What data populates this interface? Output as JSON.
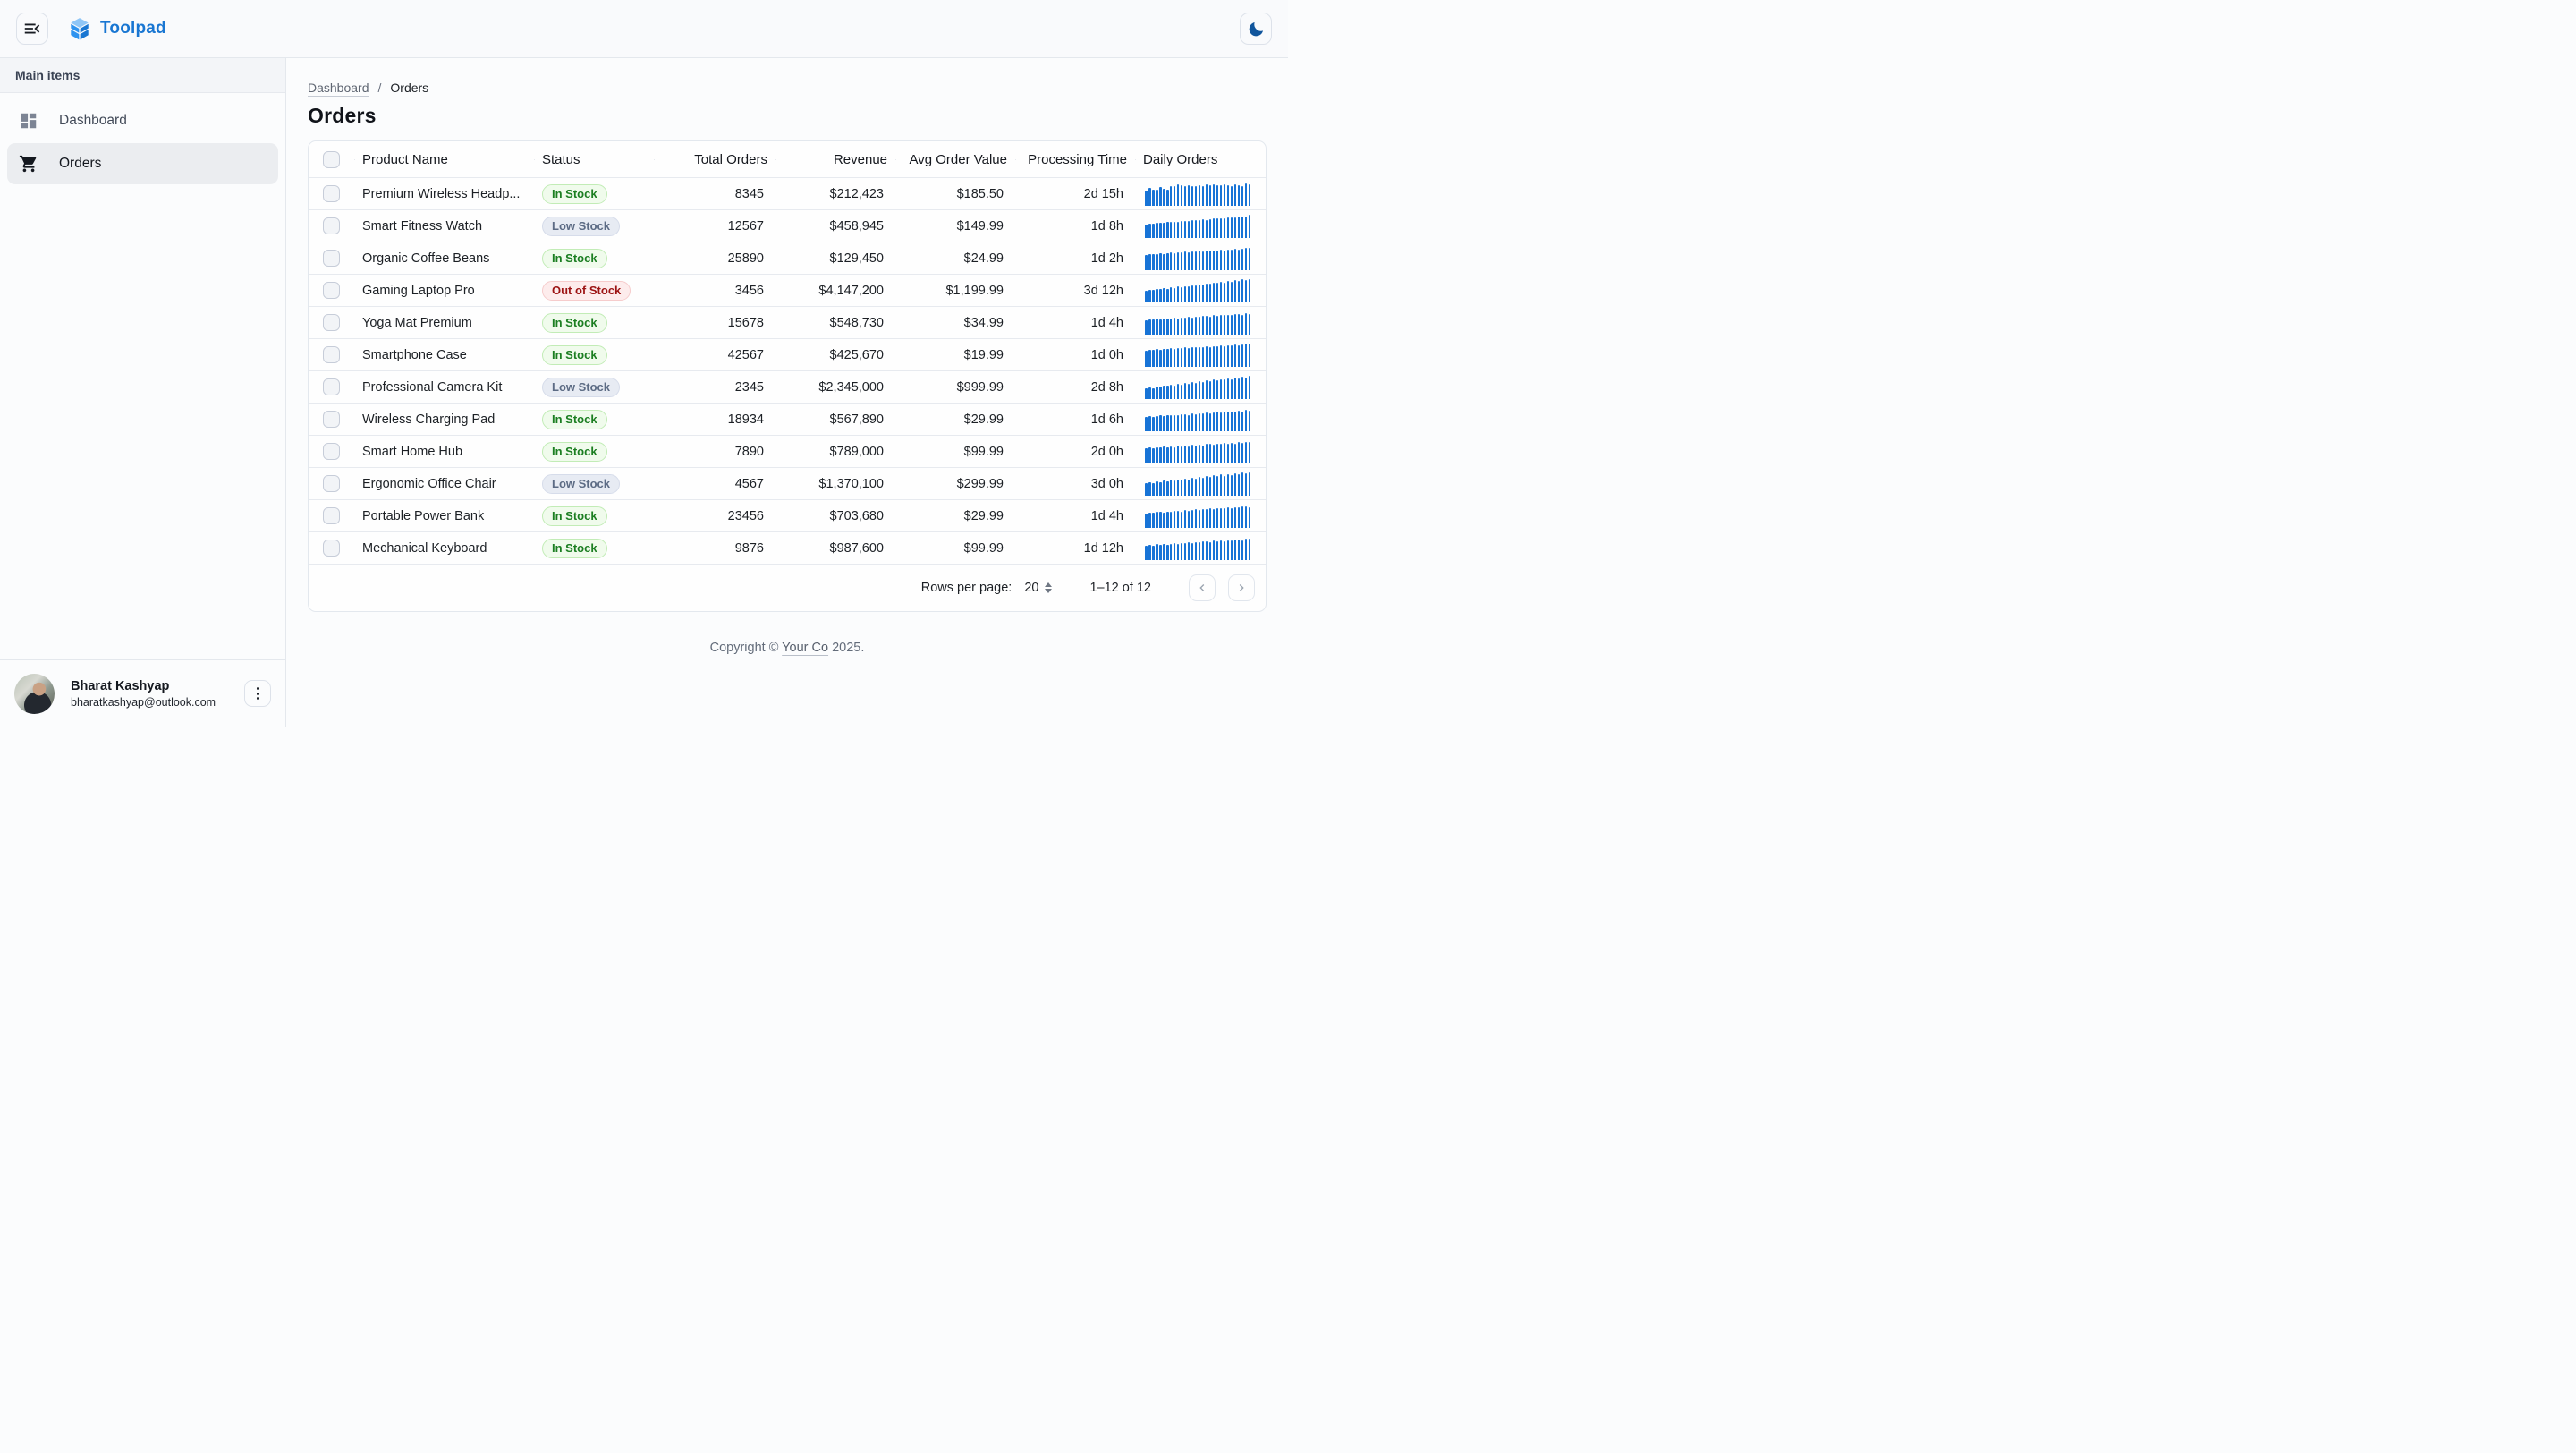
{
  "appbar": {
    "brand": "Toolpad"
  },
  "sidebar": {
    "section_label": "Main items",
    "items": [
      {
        "label": "Dashboard",
        "icon": "dashboard-icon",
        "active": false
      },
      {
        "label": "Orders",
        "icon": "shopping-cart-icon",
        "active": true
      }
    ],
    "user": {
      "name": "Bharat Kashyap",
      "email": "bharatkashyap@outlook.com"
    }
  },
  "breadcrumb": {
    "parent": "Dashboard",
    "separator": "/",
    "current": "Orders"
  },
  "page": {
    "title": "Orders"
  },
  "table": {
    "columns": {
      "product": "Product Name",
      "status": "Status",
      "total_orders": "Total Orders",
      "revenue": "Revenue",
      "avg_order_value": "Avg Order Value",
      "processing_time": "Processing Time",
      "daily_orders": "Daily Orders"
    },
    "rows": [
      {
        "product": "Premium Wireless Headp...",
        "status": "In Stock",
        "status_type": "in",
        "total_orders": "8345",
        "revenue": "$212,423",
        "avg_order_value": "$185.50",
        "processing_time": "2d 15h",
        "spark": [
          0.58,
          0.72,
          0.66,
          0.62,
          0.76,
          0.7,
          0.66,
          0.8,
          0.84,
          0.9,
          0.86,
          0.82,
          0.88,
          0.84,
          0.82,
          0.87,
          0.84,
          0.89,
          0.86,
          0.92,
          0.88,
          0.85,
          0.9,
          0.87,
          0.84,
          0.89,
          0.86,
          0.83,
          0.94,
          0.9
        ]
      },
      {
        "product": "Smart Fitness Watch",
        "status": "Low Stock",
        "status_type": "low",
        "total_orders": "12567",
        "revenue": "$458,945",
        "avg_order_value": "$149.99",
        "processing_time": "1d 8h",
        "spark": [
          0.52,
          0.56,
          0.54,
          0.58,
          0.6,
          0.58,
          0.62,
          0.64,
          0.63,
          0.66,
          0.68,
          0.67,
          0.7,
          0.72,
          0.71,
          0.74,
          0.76,
          0.75,
          0.78,
          0.8,
          0.82,
          0.81,
          0.84,
          0.86,
          0.85,
          0.88,
          0.9,
          0.89,
          0.93,
          1.0
        ]
      },
      {
        "product": "Organic Coffee Beans",
        "status": "In Stock",
        "status_type": "in",
        "total_orders": "25890",
        "revenue": "$129,450",
        "avg_order_value": "$24.99",
        "processing_time": "1d 2h",
        "spark": [
          0.6,
          0.64,
          0.62,
          0.66,
          0.68,
          0.66,
          0.7,
          0.72,
          0.7,
          0.74,
          0.72,
          0.76,
          0.74,
          0.78,
          0.76,
          0.8,
          0.78,
          0.82,
          0.8,
          0.84,
          0.82,
          0.86,
          0.84,
          0.88,
          0.86,
          0.9,
          0.88,
          0.92,
          0.94,
          0.96
        ]
      },
      {
        "product": "Gaming Laptop Pro",
        "status": "Out of Stock",
        "status_type": "out",
        "total_orders": "3456",
        "revenue": "$4,147,200",
        "avg_order_value": "$1,199.99",
        "processing_time": "3d 12h",
        "spark": [
          0.42,
          0.46,
          0.44,
          0.5,
          0.48,
          0.54,
          0.52,
          0.58,
          0.56,
          0.62,
          0.6,
          0.66,
          0.64,
          0.7,
          0.68,
          0.74,
          0.72,
          0.78,
          0.76,
          0.82,
          0.8,
          0.86,
          0.84,
          0.9,
          0.88,
          0.94,
          0.92,
          0.98,
          0.96,
          1.0
        ]
      },
      {
        "product": "Yoga Mat Premium",
        "status": "In Stock",
        "status_type": "in",
        "total_orders": "15678",
        "revenue": "$548,730",
        "avg_order_value": "$34.99",
        "processing_time": "1d 4h",
        "spark": [
          0.56,
          0.6,
          0.58,
          0.62,
          0.6,
          0.64,
          0.66,
          0.62,
          0.68,
          0.66,
          0.7,
          0.68,
          0.72,
          0.7,
          0.74,
          0.72,
          0.76,
          0.78,
          0.74,
          0.8,
          0.78,
          0.82,
          0.8,
          0.84,
          0.82,
          0.86,
          0.88,
          0.84,
          0.9,
          0.88
        ]
      },
      {
        "product": "Smartphone Case",
        "status": "In Stock",
        "status_type": "in",
        "total_orders": "42567",
        "revenue": "$425,670",
        "avg_order_value": "$19.99",
        "processing_time": "1d 0h",
        "spark": [
          0.66,
          0.7,
          0.68,
          0.72,
          0.7,
          0.74,
          0.72,
          0.76,
          0.74,
          0.78,
          0.76,
          0.8,
          0.78,
          0.82,
          0.8,
          0.84,
          0.82,
          0.86,
          0.84,
          0.88,
          0.86,
          0.9,
          0.88,
          0.92,
          0.9,
          0.94,
          0.92,
          0.96,
          0.98,
          1.0
        ]
      },
      {
        "product": "Professional Camera Kit",
        "status": "Low Stock",
        "status_type": "low",
        "total_orders": "2345",
        "revenue": "$2,345,000",
        "avg_order_value": "$999.99",
        "processing_time": "2d 8h",
        "spark": [
          0.36,
          0.42,
          0.38,
          0.46,
          0.44,
          0.52,
          0.48,
          0.56,
          0.52,
          0.6,
          0.56,
          0.64,
          0.6,
          0.68,
          0.64,
          0.72,
          0.68,
          0.76,
          0.72,
          0.8,
          0.76,
          0.84,
          0.8,
          0.88,
          0.84,
          0.92,
          0.88,
          0.96,
          0.92,
          1.0
        ]
      },
      {
        "product": "Wireless Charging Pad",
        "status": "In Stock",
        "status_type": "in",
        "total_orders": "18934",
        "revenue": "$567,890",
        "avg_order_value": "$29.99",
        "processing_time": "1d 6h",
        "spark": [
          0.54,
          0.58,
          0.56,
          0.6,
          0.62,
          0.58,
          0.64,
          0.62,
          0.66,
          0.64,
          0.68,
          0.7,
          0.66,
          0.72,
          0.7,
          0.74,
          0.72,
          0.76,
          0.74,
          0.78,
          0.8,
          0.76,
          0.82,
          0.8,
          0.84,
          0.82,
          0.86,
          0.84,
          0.9,
          0.88
        ]
      },
      {
        "product": "Smart Home Hub",
        "status": "In Stock",
        "status_type": "in",
        "total_orders": "7890",
        "revenue": "$789,000",
        "avg_order_value": "$99.99",
        "processing_time": "2d 0h",
        "spark": [
          0.58,
          0.64,
          0.6,
          0.66,
          0.62,
          0.68,
          0.64,
          0.7,
          0.66,
          0.72,
          0.68,
          0.74,
          0.7,
          0.76,
          0.72,
          0.78,
          0.74,
          0.8,
          0.82,
          0.78,
          0.84,
          0.8,
          0.86,
          0.82,
          0.88,
          0.84,
          0.9,
          0.86,
          0.92,
          0.9
        ]
      },
      {
        "product": "Ergonomic Office Chair",
        "status": "Low Stock",
        "status_type": "low",
        "total_orders": "4567",
        "revenue": "$1,370,100",
        "avg_order_value": "$299.99",
        "processing_time": "3d 0h",
        "spark": [
          0.44,
          0.5,
          0.46,
          0.54,
          0.5,
          0.58,
          0.54,
          0.62,
          0.58,
          0.66,
          0.62,
          0.7,
          0.66,
          0.74,
          0.7,
          0.78,
          0.74,
          0.82,
          0.78,
          0.86,
          0.82,
          0.9,
          0.84,
          0.92,
          0.88,
          0.96,
          0.9,
          0.98,
          0.94,
          1.0
        ]
      },
      {
        "product": "Portable Power Bank",
        "status": "In Stock",
        "status_type": "in",
        "total_orders": "23456",
        "revenue": "$703,680",
        "avg_order_value": "$29.99",
        "processing_time": "1d 4h",
        "spark": [
          0.56,
          0.6,
          0.58,
          0.62,
          0.64,
          0.6,
          0.66,
          0.64,
          0.68,
          0.7,
          0.66,
          0.72,
          0.7,
          0.74,
          0.76,
          0.72,
          0.78,
          0.76,
          0.8,
          0.78,
          0.82,
          0.84,
          0.8,
          0.86,
          0.84,
          0.88,
          0.86,
          0.9,
          0.92,
          0.88
        ]
      },
      {
        "product": "Mechanical Keyboard",
        "status": "In Stock",
        "status_type": "in",
        "total_orders": "9876",
        "revenue": "$987,600",
        "avg_order_value": "$99.99",
        "processing_time": "1d 12h",
        "spark": [
          0.55,
          0.6,
          0.57,
          0.62,
          0.59,
          0.64,
          0.61,
          0.66,
          0.68,
          0.64,
          0.7,
          0.67,
          0.72,
          0.69,
          0.74,
          0.71,
          0.76,
          0.78,
          0.74,
          0.8,
          0.77,
          0.82,
          0.79,
          0.84,
          0.81,
          0.86,
          0.88,
          0.84,
          0.9,
          0.92
        ]
      }
    ]
  },
  "pagination": {
    "rows_per_page_label": "Rows per page:",
    "rows_per_page": "20",
    "range": "1–12 of 12"
  },
  "footer": {
    "prefix": "Copyright © ",
    "company": "Your Co",
    "suffix": " 2025."
  },
  "colors": {
    "accent": "#1976d2",
    "spark_bar": "#1773d6",
    "status_in_text": "#1b7e21",
    "status_low_text": "#5c6b84",
    "status_out_text": "#9c1313"
  },
  "chart_data": {
    "type": "bar",
    "note": "Daily Orders sparklines per table row; values are normalized bar heights 0-1 stored in table.rows[].spark"
  }
}
